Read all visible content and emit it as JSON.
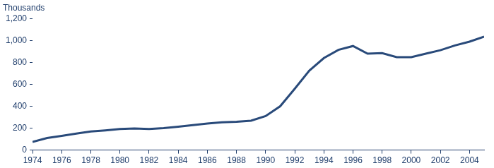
{
  "chart_data": {
    "type": "line",
    "ylabel": "Thousands",
    "x": [
      1974,
      1975,
      1976,
      1977,
      1978,
      1979,
      1980,
      1981,
      1982,
      1983,
      1984,
      1985,
      1986,
      1987,
      1988,
      1989,
      1990,
      1991,
      1992,
      1993,
      1994,
      1995,
      1996,
      1997,
      1998,
      1999,
      2000,
      2001,
      2002,
      2003,
      2004,
      2005
    ],
    "values": [
      75,
      110,
      130,
      150,
      170,
      180,
      192,
      197,
      193,
      200,
      213,
      228,
      243,
      253,
      258,
      268,
      310,
      400,
      560,
      725,
      840,
      915,
      950,
      880,
      885,
      848,
      848,
      880,
      912,
      955,
      990,
      1035
    ],
    "color": "#294a7a",
    "xlim": [
      1974,
      2005
    ],
    "xticks": [
      1974,
      1976,
      1978,
      1980,
      1982,
      1984,
      1986,
      1988,
      1990,
      1992,
      1994,
      1996,
      1998,
      2000,
      2002,
      2004
    ],
    "ylim": [
      0,
      1200
    ],
    "yticks": [
      0,
      200,
      400,
      600,
      800,
      {
        "value": 1000,
        "label": "1,000"
      },
      {
        "value": 1200,
        "label": "1,200"
      }
    ],
    "grid": false
  }
}
